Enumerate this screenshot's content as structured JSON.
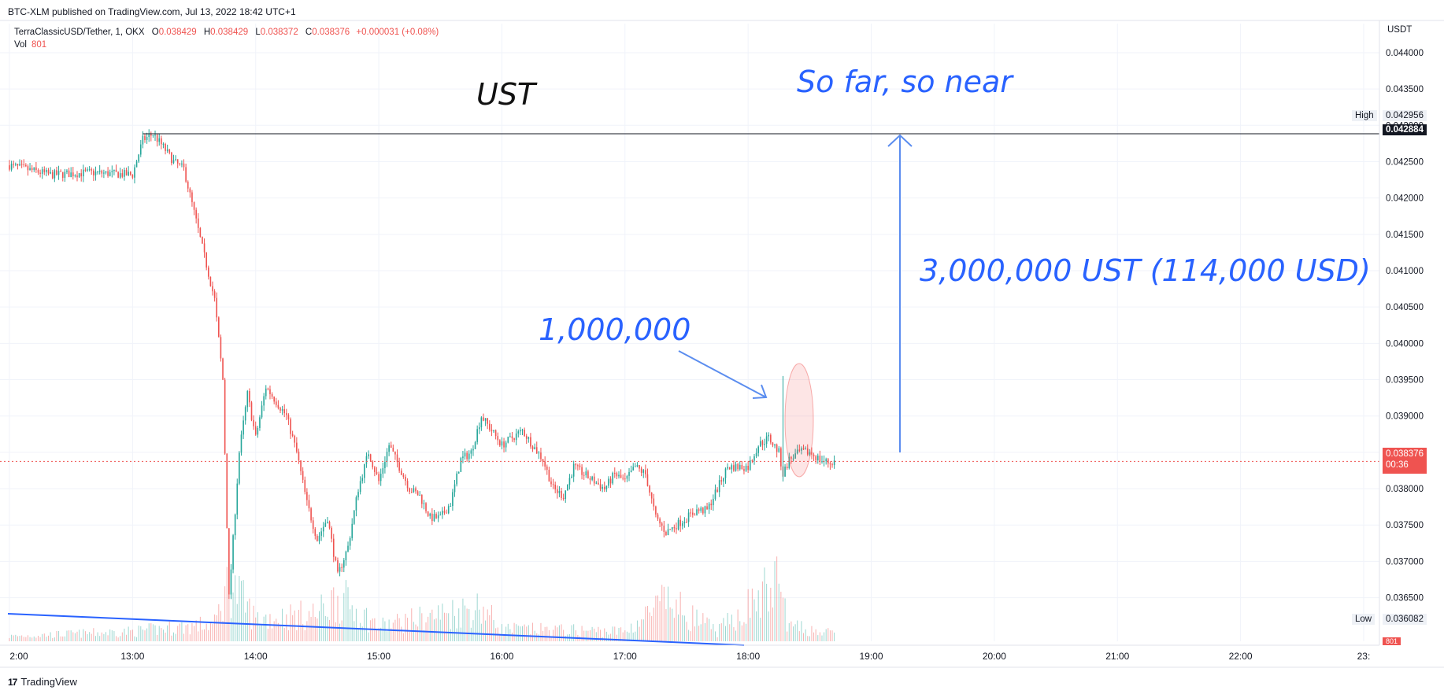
{
  "header": {
    "published": "BTC-XLM published on TradingView.com, Jul 13, 2022 18:42 UTC+1",
    "symbol": "TerraClassicUSD/Tether, 1, OKX",
    "ohlc": [
      {
        "k": "O",
        "v": "0.038429"
      },
      {
        "k": "H",
        "v": "0.038429"
      },
      {
        "k": "L",
        "v": "0.038372"
      },
      {
        "k": "C",
        "v": "0.038376"
      }
    ],
    "change": "+0.000031 (+0.08%)",
    "vol_label": "Vol",
    "vol_value": "801"
  },
  "axis": {
    "unit": "USDT",
    "high_label": "High",
    "high_value": "0.042956",
    "line_value": "0.042884",
    "low_label": "Low",
    "low_value": "0.036082",
    "last_value": "0.038376",
    "countdown": "00:36",
    "vol_badge": "801"
  },
  "annotations": {
    "ust": "UST",
    "far": "So far, so near",
    "amount": "3,000,000 UST (114,000 USD)",
    "million": "1,000,000"
  },
  "footer": {
    "logo": "17",
    "brand": "TradingView"
  },
  "colors": {
    "up": "#26a69a",
    "down": "#ef5350",
    "annotation": "#2962ff",
    "grid": "#f0f3fa"
  },
  "chart_data": {
    "type": "candlestick",
    "title": "TerraClassicUSD/Tether, 1, OKX",
    "ylim": [
      0.0359,
      0.0444
    ],
    "y_ticks": [
      "0.044000",
      "0.043500",
      "0.043000",
      "0.042500",
      "0.042000",
      "0.041500",
      "0.041000",
      "0.040500",
      "0.040000",
      "0.039500",
      "0.039000",
      "0.038500",
      "0.038000",
      "0.037500",
      "0.037000",
      "0.036500"
    ],
    "x_ticks": [
      "2:00",
      "13:00",
      "14:00",
      "15:00",
      "16:00",
      "17:00",
      "18:00",
      "19:00",
      "20:00",
      "21:00",
      "22:00",
      "23:"
    ],
    "horizontal_line": 0.042884,
    "last_price": 0.038376,
    "high": 0.042956,
    "low": 0.036082,
    "close_path": [
      [
        "12:00",
        0.04245
      ],
      [
        "12:20",
        0.04232
      ],
      [
        "12:40",
        0.04235
      ],
      [
        "13:00",
        0.04232
      ],
      [
        "13:05",
        0.0428
      ],
      [
        "13:10",
        0.04288
      ],
      [
        "13:15",
        0.0427
      ],
      [
        "13:20",
        0.0425
      ],
      [
        "13:25",
        0.0424
      ],
      [
        "13:30",
        0.0418
      ],
      [
        "13:35",
        0.0412
      ],
      [
        "13:40",
        0.0406
      ],
      [
        "13:44",
        0.0395
      ],
      [
        "13:47",
        0.0365
      ],
      [
        "13:52",
        0.0385
      ],
      [
        "13:56",
        0.0393
      ],
      [
        "14:00",
        0.0387
      ],
      [
        "14:05",
        0.0394
      ],
      [
        "14:10",
        0.0392
      ],
      [
        "14:15",
        0.039
      ],
      [
        "14:20",
        0.0385
      ],
      [
        "14:25",
        0.0378
      ],
      [
        "14:30",
        0.0373
      ],
      [
        "14:35",
        0.0376
      ],
      [
        "14:40",
        0.0368
      ],
      [
        "14:45",
        0.0372
      ],
      [
        "14:50",
        0.038
      ],
      [
        "14:55",
        0.0385
      ],
      [
        "15:00",
        0.0381
      ],
      [
        "15:05",
        0.0386
      ],
      [
        "15:10",
        0.0383
      ],
      [
        "15:15",
        0.038
      ],
      [
        "15:20",
        0.0379
      ],
      [
        "15:25",
        0.0376
      ],
      [
        "15:30",
        0.0376
      ],
      [
        "15:35",
        0.0378
      ],
      [
        "15:40",
        0.0384
      ],
      [
        "15:45",
        0.0385
      ],
      [
        "15:50",
        0.039
      ],
      [
        "15:55",
        0.0388
      ],
      [
        "16:00",
        0.0386
      ],
      [
        "16:05",
        0.0387
      ],
      [
        "16:10",
        0.0388
      ],
      [
        "16:15",
        0.0386
      ],
      [
        "16:20",
        0.0384
      ],
      [
        "16:25",
        0.038
      ],
      [
        "16:30",
        0.0379
      ],
      [
        "16:35",
        0.0383
      ],
      [
        "16:40",
        0.0382
      ],
      [
        "16:45",
        0.0381
      ],
      [
        "16:50",
        0.038
      ],
      [
        "16:55",
        0.0382
      ],
      [
        "17:00",
        0.0381
      ],
      [
        "17:05",
        0.0383
      ],
      [
        "17:10",
        0.0382
      ],
      [
        "17:15",
        0.0376
      ],
      [
        "17:20",
        0.0374
      ],
      [
        "17:25",
        0.0375
      ],
      [
        "17:30",
        0.0376
      ],
      [
        "17:35",
        0.0377
      ],
      [
        "17:40",
        0.0377
      ],
      [
        "17:45",
        0.038
      ],
      [
        "17:50",
        0.0383
      ],
      [
        "17:55",
        0.0383
      ],
      [
        "18:00",
        0.0383
      ],
      [
        "18:05",
        0.0386
      ],
      [
        "18:10",
        0.0387
      ],
      [
        "18:15",
        0.0385
      ],
      [
        "18:17",
        0.0382
      ],
      [
        "18:20",
        0.0384
      ],
      [
        "18:25",
        0.0385
      ],
      [
        "18:30",
        0.0385
      ],
      [
        "18:35",
        0.0384
      ],
      [
        "18:40",
        0.03835
      ],
      [
        "18:42",
        0.038376
      ]
    ],
    "volume_path": [
      [
        "12:00",
        20
      ],
      [
        "13:00",
        40
      ],
      [
        "13:40",
        70
      ],
      [
        "13:47",
        240
      ],
      [
        "14:00",
        90
      ],
      [
        "14:30",
        110
      ],
      [
        "14:40",
        180
      ],
      [
        "15:00",
        60
      ],
      [
        "15:50",
        140
      ],
      [
        "16:00",
        50
      ],
      [
        "17:00",
        40
      ],
      [
        "17:20",
        160
      ],
      [
        "17:45",
        40
      ],
      [
        "18:15",
        240
      ],
      [
        "18:20",
        60
      ],
      [
        "18:42",
        30
      ]
    ],
    "wick_spike": {
      "time": "18:17",
      "high": 0.03955,
      "low": 0.0381
    }
  }
}
